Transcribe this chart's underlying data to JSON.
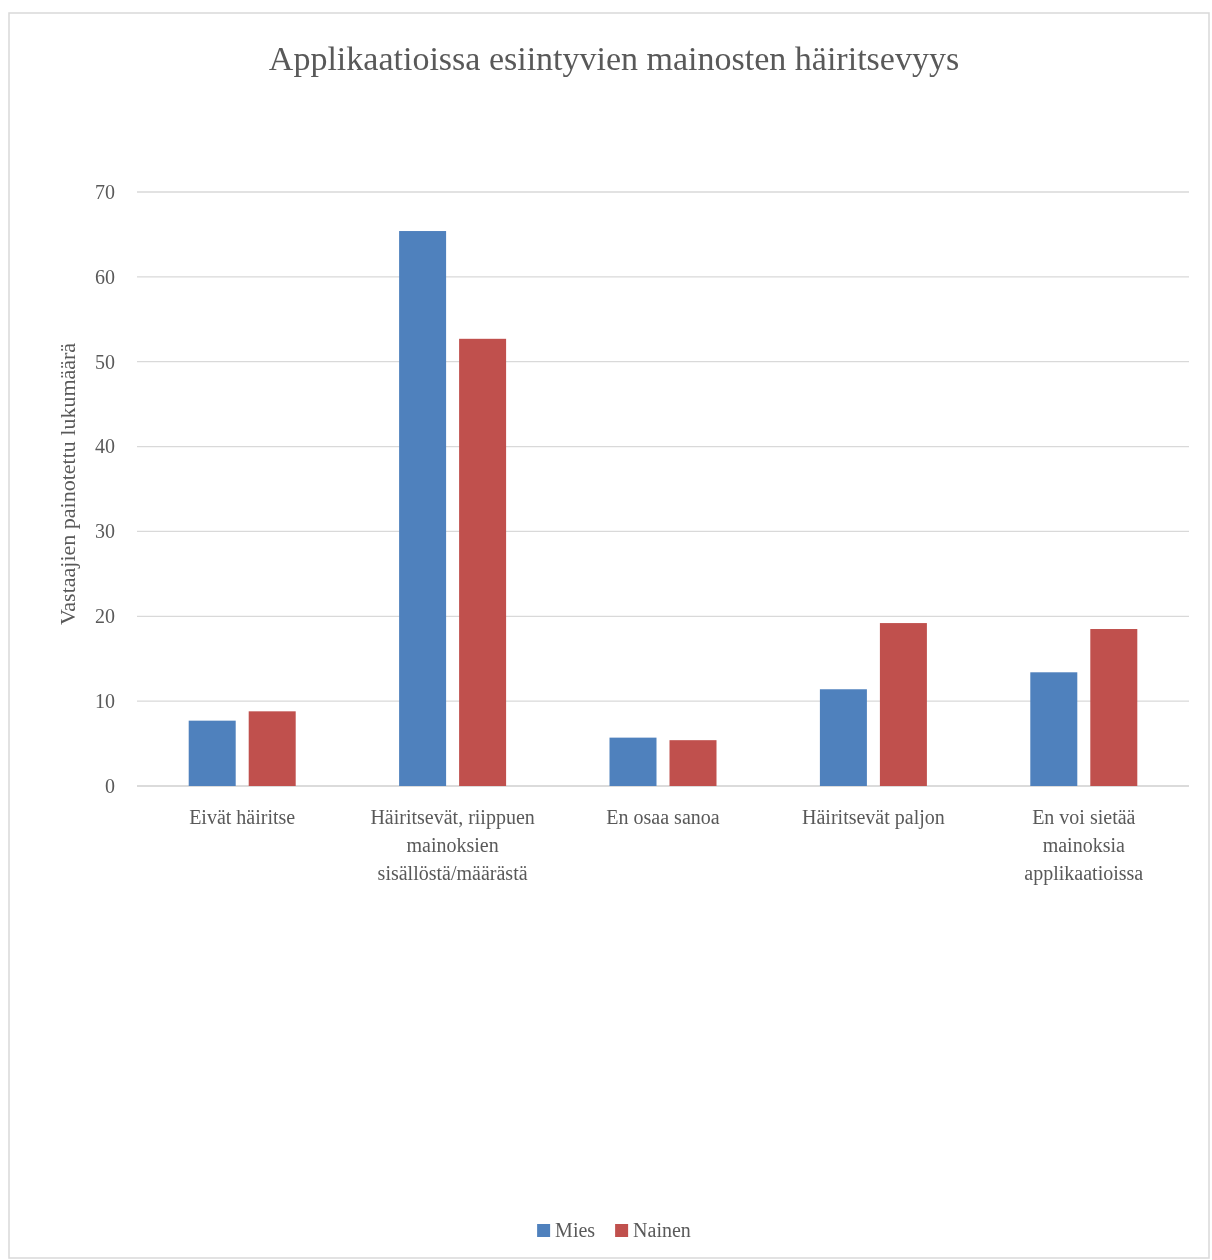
{
  "chart_data": {
    "type": "bar",
    "title": "Applikaatioissa esiintyvien mainosten häiritsevyys",
    "ylabel": "Vastaajien painotettu lukumäärä",
    "categories": [
      "Eivät häiritse",
      "Häiritsevät, riippuen mainoksien sisällöstä/määrästä",
      "En osaa sanoa",
      "Häiritsevät paljon",
      "En voi sietää mainoksia applikaatioissa"
    ],
    "series": [
      {
        "name": "Mies",
        "color": "#4f81bd",
        "values": [
          7.7,
          65.4,
          5.7,
          11.4,
          13.4
        ]
      },
      {
        "name": "Nainen",
        "color": "#c0504d",
        "values": [
          8.8,
          52.7,
          5.4,
          19.2,
          18.5
        ]
      }
    ],
    "ylim": [
      0,
      70
    ],
    "yticks": [
      0,
      10,
      20,
      30,
      40,
      50,
      60,
      70
    ],
    "grid": "y",
    "legend": "bottom"
  }
}
